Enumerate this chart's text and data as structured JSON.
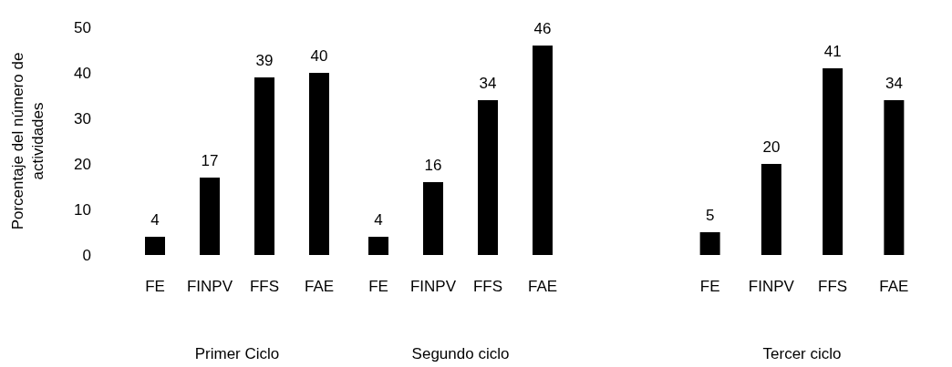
{
  "chart_data": [
    {
      "type": "bar",
      "xlabel": "Primer Ciclo",
      "ylabel": "Porcentaje del número de actividades",
      "categories": [
        "FE",
        "FINPV",
        "FFS",
        "FAE"
      ],
      "values": [
        4,
        17,
        39,
        40
      ],
      "color": "#000000",
      "ylim": [
        0,
        50
      ],
      "yticks": [
        0,
        10,
        20,
        30,
        40,
        50
      ],
      "data_labels": true,
      "grid": false
    },
    {
      "type": "bar",
      "xlabel": "Segundo ciclo",
      "categories": [
        "FE",
        "FINPV",
        "FFS",
        "FAE"
      ],
      "values": [
        4,
        16,
        34,
        46
      ],
      "color": "#000000",
      "ylim": [
        0,
        50
      ],
      "data_labels": true,
      "tick_labels": "x",
      "grid": false
    },
    {
      "type": "bar",
      "xlabel": "Tercer ciclo",
      "categories": [
        "FE",
        "FINPV",
        "FFS",
        "FAE"
      ],
      "values": [
        5,
        20,
        41,
        34
      ],
      "color": "#000000",
      "ylim": [
        0,
        50
      ],
      "data_labels": true,
      "tick_labels": "x",
      "grid": false
    }
  ]
}
